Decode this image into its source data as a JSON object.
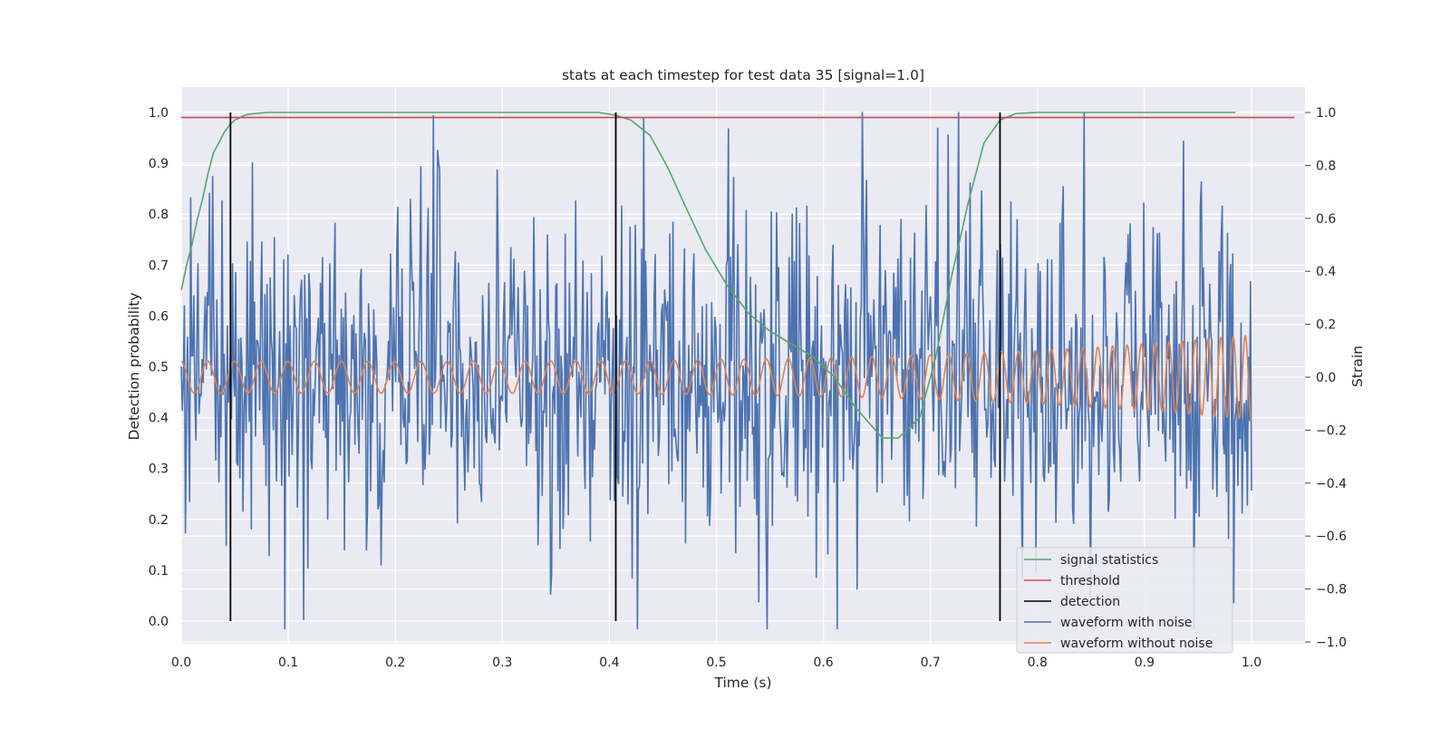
{
  "chart_data": {
    "type": "line",
    "title": "stats at each timestep for test data 35 [signal=1.0]",
    "xlabel": "Time (s)",
    "ylabel": "Detection probability",
    "y2label": "Strain",
    "xlim": [
      0.0,
      1.05
    ],
    "ylim": [
      -0.045,
      1.05
    ],
    "y2lim": [
      -1.04,
      1.08
    ],
    "xticks": [
      "0.0",
      "0.1",
      "0.2",
      "0.3",
      "0.4",
      "0.5",
      "0.6",
      "0.7",
      "0.8",
      "0.9",
      "1.0"
    ],
    "yticks": [
      "0.0",
      "0.1",
      "0.2",
      "0.3",
      "0.4",
      "0.5",
      "0.6",
      "0.7",
      "0.8",
      "0.9",
      "1.0"
    ],
    "y2ticks": [
      "−1.0",
      "−0.8",
      "−0.6",
      "−0.4",
      "−0.2",
      "0.0",
      "0.2",
      "0.4",
      "0.6",
      "0.8",
      "1.0"
    ],
    "grid": true,
    "legend_position": "lower-right",
    "colors": {
      "signal": "#55a868",
      "threshold": "#c44e52",
      "detection": "#000000",
      "noisy": "#4c72b0",
      "clean": "#dd8452",
      "plot_bg": "#eaeaf2",
      "grid": "#ffffff"
    },
    "series": [
      {
        "name": "signal statistics",
        "axis": "left",
        "x": [
          0.0,
          0.005,
          0.01,
          0.015,
          0.02,
          0.025,
          0.03,
          0.035,
          0.04,
          0.045,
          0.05,
          0.055,
          0.06,
          0.065,
          0.08,
          0.1,
          0.2,
          0.3,
          0.39,
          0.405,
          0.42,
          0.438,
          0.455,
          0.47,
          0.49,
          0.51,
          0.53,
          0.55,
          0.57,
          0.59,
          0.61,
          0.63,
          0.655,
          0.67,
          0.69,
          0.705,
          0.72,
          0.735,
          0.75,
          0.765,
          0.78,
          0.8,
          0.9,
          0.985
        ],
        "y": [
          0.65,
          0.7,
          0.74,
          0.79,
          0.83,
          0.88,
          0.92,
          0.94,
          0.96,
          0.975,
          0.985,
          0.99,
          0.995,
          0.997,
          1.0,
          1.0,
          1.0,
          1.0,
          1.0,
          0.995,
          0.985,
          0.955,
          0.89,
          0.82,
          0.73,
          0.66,
          0.605,
          0.57,
          0.545,
          0.52,
          0.48,
          0.42,
          0.36,
          0.36,
          0.4,
          0.52,
          0.68,
          0.82,
          0.94,
          0.985,
          0.998,
          1.0,
          1.0,
          1.0
        ]
      },
      {
        "name": "threshold",
        "axis": "left",
        "x": [
          0.0,
          1.04
        ],
        "y": [
          0.99,
          0.99
        ]
      },
      {
        "name": "detection",
        "axis": "left",
        "type": "vlines",
        "x": [
          0.046,
          0.406,
          0.765
        ],
        "ymin": 0.0,
        "ymax": 1.0
      },
      {
        "name": "waveform with noise",
        "axis": "right",
        "type": "noise",
        "x_range": [
          0.0,
          1.0
        ],
        "samples": 1024,
        "amplitude_range": [
          -0.95,
          1.0
        ]
      },
      {
        "name": "waveform without noise",
        "axis": "right",
        "type": "chirp",
        "x_range": [
          0.0,
          1.0
        ],
        "amplitude_start": 0.06,
        "amplitude_end": 0.16,
        "cycles_start_per_s": 40,
        "cycles_end_per_s": 90
      }
    ]
  }
}
